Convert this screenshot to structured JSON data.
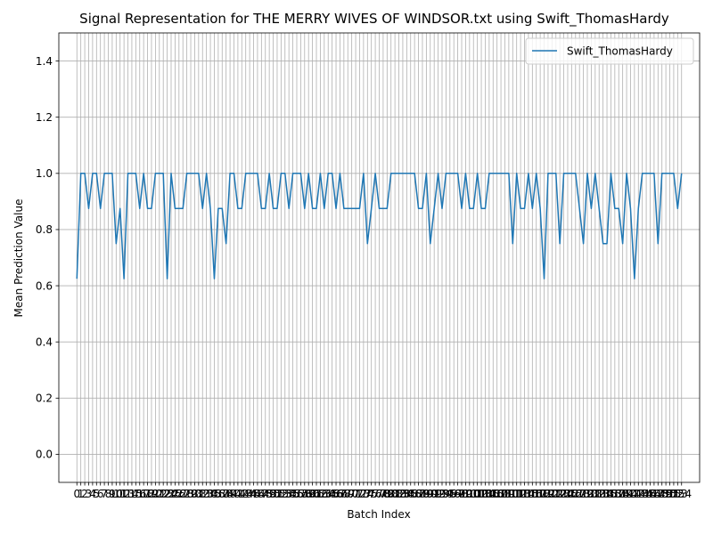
{
  "chart_data": {
    "type": "line",
    "title": "Signal Representation for THE MERRY WIVES OF WINDSOR.txt using Swift_ThomasHardy",
    "xlabel": "Batch Index",
    "ylabel": "Mean Prediction Value",
    "xlim": [
      -4.6,
      158.6
    ],
    "ylim": [
      -0.1,
      1.5
    ],
    "yticks": [
      0.0,
      0.2,
      0.4,
      0.6,
      0.8,
      1.0,
      1.2,
      1.4
    ],
    "grid": true,
    "legend_position": "top-right",
    "series": [
      {
        "name": "Swift_ThomasHardy",
        "color": "#1f77b4",
        "values": [
          0.625,
          1.0,
          1.0,
          0.875,
          1.0,
          1.0,
          0.875,
          1.0,
          1.0,
          1.0,
          0.75,
          0.875,
          0.625,
          1.0,
          1.0,
          1.0,
          0.875,
          1.0,
          0.875,
          0.875,
          1.0,
          1.0,
          1.0,
          0.625,
          1.0,
          0.875,
          0.875,
          0.875,
          1.0,
          1.0,
          1.0,
          1.0,
          0.875,
          1.0,
          0.875,
          0.625,
          0.875,
          0.875,
          0.75,
          1.0,
          1.0,
          0.875,
          0.875,
          1.0,
          1.0,
          1.0,
          1.0,
          0.875,
          0.875,
          1.0,
          0.875,
          0.875,
          1.0,
          1.0,
          0.875,
          1.0,
          1.0,
          1.0,
          0.875,
          1.0,
          0.875,
          0.875,
          1.0,
          0.875,
          1.0,
          1.0,
          0.875,
          1.0,
          0.875,
          0.875,
          0.875,
          0.875,
          0.875,
          1.0,
          0.75,
          0.875,
          1.0,
          0.875,
          0.875,
          0.875,
          1.0,
          1.0,
          1.0,
          1.0,
          1.0,
          1.0,
          1.0,
          0.875,
          0.875,
          1.0,
          0.75,
          0.875,
          1.0,
          0.875,
          1.0,
          1.0,
          1.0,
          1.0,
          0.875,
          1.0,
          0.875,
          0.875,
          1.0,
          0.875,
          0.875,
          1.0,
          1.0,
          1.0,
          1.0,
          1.0,
          1.0,
          0.75,
          1.0,
          0.875,
          0.875,
          1.0,
          0.875,
          1.0,
          0.875,
          0.625,
          1.0,
          1.0,
          1.0,
          0.75,
          1.0,
          1.0,
          1.0,
          1.0,
          0.875,
          0.75,
          1.0,
          0.875,
          1.0,
          0.875,
          0.75,
          0.75,
          1.0,
          0.875,
          0.875,
          0.75,
          1.0,
          0.875,
          0.625,
          0.875,
          1.0,
          1.0,
          1.0,
          1.0,
          0.75,
          1.0,
          1.0,
          1.0,
          1.0,
          0.875,
          1.0
        ]
      }
    ]
  }
}
